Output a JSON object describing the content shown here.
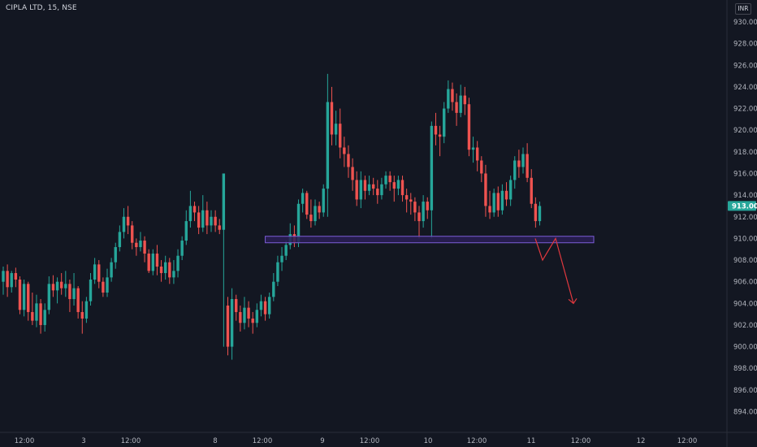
{
  "symbol_title": "CIPLA LTD, 15, NSE",
  "currency_label": "INR",
  "colors": {
    "background": "#131722",
    "up": "#26a69a",
    "down": "#ef5350",
    "zone_fill": "#2a1f55",
    "zone_stroke": "#7b5cd6",
    "arrow": "#e0383e",
    "price_tag": "#26a69a",
    "axis_text": "#b2b5be"
  },
  "chart_data": {
    "type": "candlestick",
    "y_range": [
      892,
      931
    ],
    "y_ticks": [
      "894.00",
      "896.00",
      "898.00",
      "900.00",
      "902.00",
      "904.00",
      "906.00",
      "908.00",
      "910.00",
      "912.00",
      "914.00",
      "916.00",
      "918.00",
      "920.00",
      "922.00",
      "924.00",
      "926.00",
      "928.00",
      "930.00"
    ],
    "last_price": "913.00",
    "x_ticks": [
      "12:00",
      "3",
      "12:00",
      "8",
      "12:00",
      "9",
      "12:00",
      "10",
      "12:00",
      "11",
      "12:00",
      "12",
      "12:00"
    ],
    "candles": [
      [
        906.0,
        907.0,
        904.8,
        907.4
      ],
      [
        907.0,
        905.5,
        904.6,
        907.6
      ],
      [
        905.5,
        906.8,
        905.0,
        907.0
      ],
      [
        906.8,
        906.2,
        905.5,
        907.3
      ],
      [
        906.2,
        903.4,
        903.0,
        906.5
      ],
      [
        903.4,
        905.8,
        902.8,
        906.2
      ],
      [
        905.8,
        903.2,
        902.4,
        906.0
      ],
      [
        903.2,
        902.4,
        902.0,
        905.0
      ],
      [
        902.4,
        904.0,
        901.8,
        904.8
      ],
      [
        904.0,
        902.0,
        901.2,
        904.4
      ],
      [
        902.0,
        903.4,
        901.4,
        904.0
      ],
      [
        903.4,
        905.8,
        903.0,
        906.5
      ],
      [
        905.8,
        905.2,
        904.6,
        906.6
      ],
      [
        905.2,
        906.0,
        904.0,
        906.4
      ],
      [
        906.0,
        905.4,
        904.8,
        906.8
      ],
      [
        905.4,
        905.8,
        904.6,
        907.0
      ],
      [
        905.8,
        904.4,
        903.2,
        906.2
      ],
      [
        904.4,
        905.4,
        903.8,
        906.8
      ],
      [
        905.4,
        903.2,
        902.6,
        905.6
      ],
      [
        903.2,
        902.6,
        901.2,
        904.2
      ],
      [
        902.6,
        904.2,
        902.2,
        904.6
      ],
      [
        904.2,
        906.2,
        903.8,
        906.8
      ],
      [
        906.2,
        907.6,
        905.8,
        908.2
      ],
      [
        907.6,
        906.0,
        905.4,
        908.0
      ],
      [
        906.0,
        905.0,
        904.6,
        906.4
      ],
      [
        905.0,
        906.4,
        904.6,
        907.2
      ],
      [
        906.4,
        907.8,
        906.0,
        908.2
      ],
      [
        907.8,
        909.2,
        907.2,
        909.6
      ],
      [
        909.2,
        910.6,
        908.8,
        911.2
      ],
      [
        910.6,
        912.0,
        910.0,
        912.8
      ],
      [
        912.0,
        911.2,
        910.4,
        913.0
      ],
      [
        911.2,
        909.6,
        909.0,
        911.6
      ],
      [
        909.6,
        909.2,
        908.4,
        910.0
      ],
      [
        909.2,
        909.8,
        908.8,
        910.6
      ],
      [
        909.8,
        908.6,
        907.8,
        910.2
      ],
      [
        908.6,
        907.0,
        906.8,
        909.0
      ],
      [
        907.0,
        908.6,
        906.6,
        909.0
      ],
      [
        908.6,
        907.4,
        906.6,
        909.4
      ],
      [
        907.4,
        906.8,
        906.0,
        908.0
      ],
      [
        906.8,
        907.8,
        906.2,
        908.4
      ],
      [
        907.8,
        906.4,
        905.8,
        908.2
      ],
      [
        906.4,
        907.0,
        905.8,
        908.0
      ],
      [
        907.0,
        908.4,
        906.4,
        909.0
      ],
      [
        908.4,
        909.8,
        908.0,
        910.2
      ],
      [
        909.8,
        911.6,
        909.4,
        912.6
      ],
      [
        911.6,
        913.0,
        911.0,
        914.4
      ],
      [
        913.0,
        912.4,
        911.6,
        913.4
      ],
      [
        912.4,
        911.0,
        910.4,
        913.0
      ],
      [
        911.0,
        912.6,
        910.6,
        914.0
      ],
      [
        912.6,
        911.2,
        910.4,
        913.4
      ],
      [
        911.2,
        912.0,
        910.6,
        912.6
      ],
      [
        912.0,
        911.2,
        910.6,
        912.6
      ],
      [
        911.2,
        910.8,
        910.4,
        911.8
      ],
      [
        910.8,
        916.0,
        900.0,
        916.0
      ],
      [
        903.8,
        900.0,
        899.2,
        904.6
      ],
      [
        900.0,
        904.4,
        898.8,
        905.4
      ],
      [
        904.4,
        903.2,
        902.4,
        904.8
      ],
      [
        903.2,
        902.2,
        901.4,
        903.8
      ],
      [
        902.2,
        903.6,
        901.6,
        904.6
      ],
      [
        903.6,
        902.6,
        901.8,
        904.2
      ],
      [
        902.6,
        902.2,
        901.2,
        903.2
      ],
      [
        902.2,
        903.4,
        901.8,
        904.0
      ],
      [
        903.4,
        904.2,
        902.8,
        904.8
      ],
      [
        904.2,
        903.0,
        902.4,
        904.6
      ],
      [
        903.0,
        904.6,
        902.6,
        905.0
      ],
      [
        904.6,
        906.0,
        904.2,
        906.8
      ],
      [
        906.0,
        907.8,
        905.6,
        908.4
      ],
      [
        907.8,
        908.4,
        907.0,
        909.2
      ],
      [
        908.4,
        909.4,
        908.0,
        909.8
      ],
      [
        909.4,
        910.4,
        909.0,
        911.4
      ],
      [
        910.4,
        909.6,
        909.2,
        911.2
      ],
      [
        909.6,
        913.2,
        909.2,
        913.6
      ],
      [
        913.2,
        914.2,
        912.4,
        914.6
      ],
      [
        914.2,
        912.2,
        911.8,
        914.4
      ],
      [
        912.2,
        911.6,
        911.0,
        913.6
      ],
      [
        911.6,
        913.0,
        911.2,
        913.6
      ],
      [
        913.0,
        912.4,
        911.8,
        913.4
      ],
      [
        912.4,
        914.6,
        912.0,
        915.0
      ],
      [
        914.6,
        922.6,
        912.0,
        925.2
      ],
      [
        922.6,
        919.6,
        918.6,
        924.0
      ],
      [
        919.6,
        920.6,
        918.6,
        921.8
      ],
      [
        920.6,
        918.4,
        917.4,
        922.0
      ],
      [
        918.4,
        917.8,
        916.6,
        919.4
      ],
      [
        917.8,
        916.6,
        915.6,
        918.6
      ],
      [
        916.6,
        915.4,
        914.4,
        917.4
      ],
      [
        915.4,
        913.6,
        913.0,
        916.2
      ],
      [
        913.6,
        915.4,
        912.8,
        916.2
      ],
      [
        915.4,
        914.4,
        913.6,
        915.8
      ],
      [
        914.4,
        915.0,
        914.0,
        915.8
      ],
      [
        915.0,
        914.6,
        914.0,
        915.6
      ],
      [
        914.6,
        914.0,
        913.2,
        915.4
      ],
      [
        914.0,
        915.0,
        913.6,
        915.6
      ],
      [
        915.0,
        915.8,
        914.6,
        916.2
      ],
      [
        915.8,
        915.2,
        914.4,
        916.2
      ],
      [
        915.2,
        914.6,
        913.4,
        915.8
      ],
      [
        914.6,
        915.4,
        914.0,
        915.8
      ],
      [
        915.4,
        914.0,
        913.4,
        915.8
      ],
      [
        914.0,
        913.6,
        912.4,
        914.6
      ],
      [
        913.6,
        913.4,
        912.2,
        914.2
      ],
      [
        913.4,
        912.4,
        911.6,
        913.8
      ],
      [
        912.4,
        911.6,
        910.0,
        913.0
      ],
      [
        911.6,
        913.4,
        911.0,
        914.0
      ],
      [
        913.4,
        912.6,
        911.8,
        913.8
      ],
      [
        912.6,
        920.4,
        910.0,
        920.8
      ],
      [
        920.4,
        919.6,
        918.6,
        921.6
      ],
      [
        919.6,
        919.4,
        917.6,
        920.4
      ],
      [
        919.4,
        922.0,
        918.8,
        922.6
      ],
      [
        922.0,
        923.8,
        921.6,
        924.6
      ],
      [
        923.8,
        922.6,
        921.8,
        924.4
      ],
      [
        922.6,
        921.6,
        920.4,
        923.4
      ],
      [
        921.6,
        923.2,
        921.2,
        924.2
      ],
      [
        923.2,
        922.4,
        921.4,
        924.0
      ],
      [
        922.4,
        918.2,
        917.6,
        923.0
      ],
      [
        918.2,
        918.4,
        917.0,
        919.4
      ],
      [
        918.4,
        917.2,
        916.2,
        919.0
      ],
      [
        917.2,
        916.0,
        915.2,
        917.6
      ],
      [
        916.0,
        913.0,
        912.0,
        916.8
      ],
      [
        913.0,
        912.4,
        911.8,
        914.4
      ],
      [
        912.4,
        914.2,
        912.0,
        914.6
      ],
      [
        914.2,
        912.6,
        912.0,
        914.8
      ],
      [
        912.6,
        914.4,
        912.2,
        915.0
      ],
      [
        914.4,
        913.6,
        913.0,
        915.2
      ],
      [
        913.6,
        915.4,
        913.0,
        915.8
      ],
      [
        915.4,
        917.2,
        914.6,
        917.6
      ],
      [
        917.2,
        916.6,
        915.6,
        918.2
      ],
      [
        916.6,
        917.8,
        916.0,
        918.4
      ],
      [
        917.8,
        915.6,
        915.2,
        918.8
      ],
      [
        915.6,
        913.2,
        912.8,
        916.4
      ],
      [
        913.2,
        911.6,
        911.0,
        913.8
      ],
      [
        911.6,
        913.0,
        911.2,
        913.4
      ]
    ],
    "support_zone": {
      "low": 909.6,
      "high": 910.2
    },
    "projection_arrow": [
      [
        910.0,
        108
      ],
      [
        908.0,
        112
      ],
      [
        910.0,
        116
      ],
      [
        904.0,
        121
      ]
    ]
  }
}
